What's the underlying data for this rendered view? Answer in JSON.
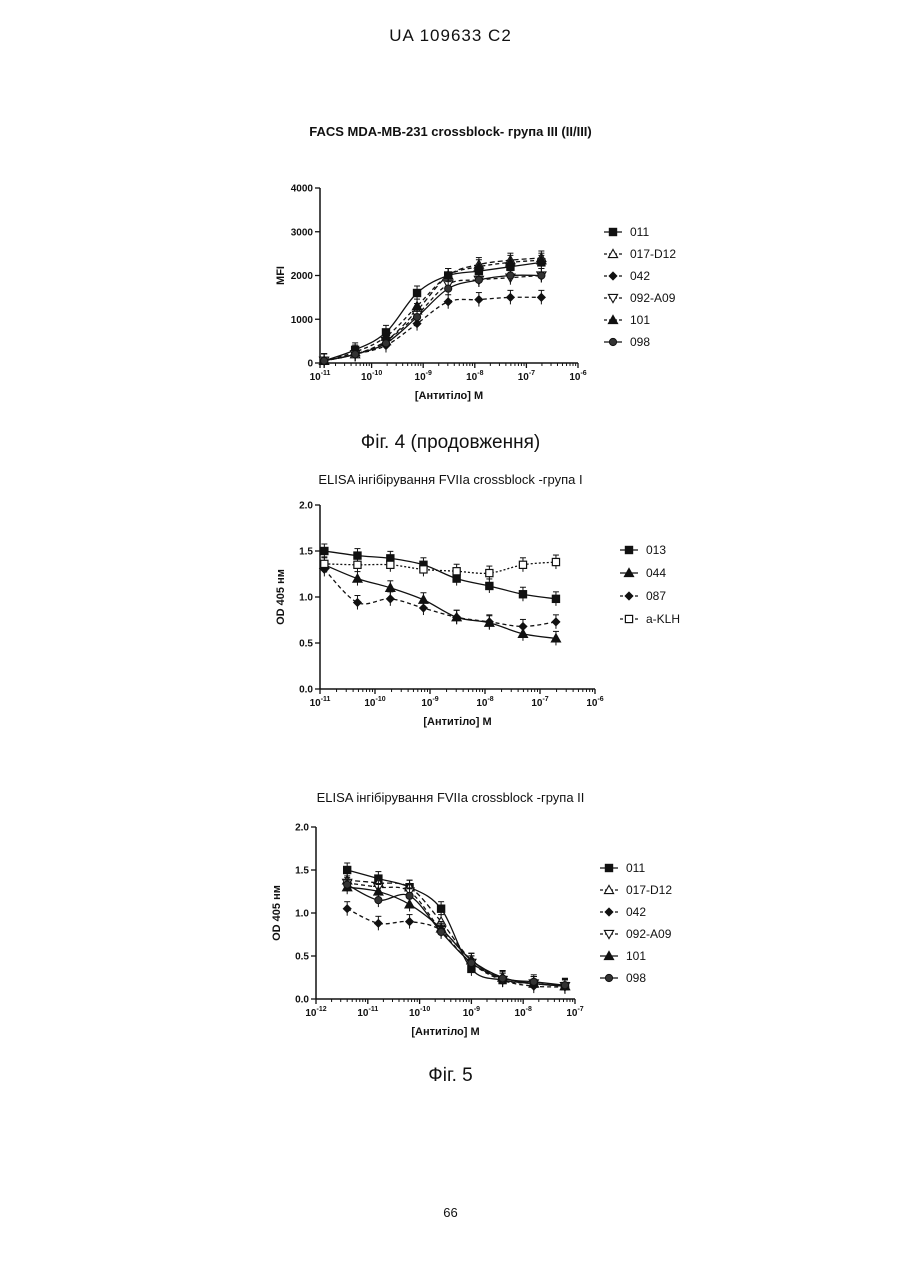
{
  "header": "UA   109633   C2",
  "page_number": "66",
  "captions": [
    "Фіг. 4 (продовження)",
    "Фіг. 5"
  ],
  "chart_data": [
    {
      "type": "line",
      "title": "FACS MDA-MB-231 crossblock- група  III (II/III)",
      "xlabel": "[Антитіло] M",
      "ylabel": "MFI",
      "x_scale": "log",
      "xlim": [
        1e-11,
        1e-06
      ],
      "ylim": [
        0,
        4000
      ],
      "x_ticks": [
        {
          "value": 1e-11,
          "label": "10-11"
        },
        {
          "value": 1e-10,
          "label": "10-10"
        },
        {
          "value": 1e-09,
          "label": "10-9"
        },
        {
          "value": 1e-08,
          "label": "10-8"
        },
        {
          "value": 1e-07,
          "label": "10-7"
        },
        {
          "value": 1e-06,
          "label": "10-6"
        }
      ],
      "y_ticks": [
        0,
        1000,
        2000,
        3000,
        4000
      ],
      "x": [
        1.2e-11,
        4.8e-11,
        1.9e-10,
        7.6e-10,
        3.05e-09,
        1.2e-08,
        4.9e-08,
        1.95e-07
      ],
      "legend_position": "right",
      "series": [
        {
          "name": "011",
          "marker": "square",
          "dash": "",
          "values": [
            50,
            300,
            700,
            1600,
            2000,
            2100,
            2200,
            2300
          ]
        },
        {
          "name": "017-D12",
          "marker": "triangle-open",
          "dash": "5,3",
          "values": [
            50,
            200,
            500,
            1200,
            2000,
            2250,
            2350,
            2400
          ]
        },
        {
          "name": "042",
          "marker": "diamond",
          "dash": "4,3",
          "values": [
            50,
            200,
            400,
            900,
            1400,
            1450,
            1500,
            1500
          ]
        },
        {
          "name": "092-A09",
          "marker": "triangle-down-open",
          "dash": "4,3",
          "values": [
            50,
            200,
            500,
            1100,
            1800,
            1900,
            1950,
            2000
          ]
        },
        {
          "name": "101",
          "marker": "triangle",
          "dash": "4,3",
          "values": [
            50,
            250,
            600,
            1300,
            2000,
            2200,
            2300,
            2350
          ]
        },
        {
          "name": "098",
          "marker": "circle",
          "dash": "",
          "values": [
            50,
            200,
            450,
            1050,
            1700,
            1900,
            2000,
            2000
          ]
        }
      ]
    },
    {
      "type": "line",
      "title": "ELISA інгібірування  FVIIa crossblock -група I",
      "xlabel": "[Антитіло] M",
      "ylabel": "OD 405 нм",
      "x_scale": "log",
      "xlim": [
        1e-11,
        1e-06
      ],
      "ylim": [
        0,
        2.0
      ],
      "x_ticks": [
        {
          "value": 1e-11,
          "label": "10-11"
        },
        {
          "value": 1e-10,
          "label": "10-10"
        },
        {
          "value": 1e-09,
          "label": "10-9"
        },
        {
          "value": 1e-08,
          "label": "10-8"
        },
        {
          "value": 1e-07,
          "label": "10-7"
        },
        {
          "value": 1e-06,
          "label": "10-6"
        }
      ],
      "y_ticks": [
        {
          "value": 0,
          "label": "0.0"
        },
        {
          "value": 0.5,
          "label": "0.5"
        },
        {
          "value": 1.0,
          "label": "1.0"
        },
        {
          "value": 1.5,
          "label": "1.5"
        },
        {
          "value": 2.0,
          "label": "2.0"
        }
      ],
      "x": [
        1.2e-11,
        4.8e-11,
        1.9e-10,
        7.6e-10,
        3.05e-09,
        1.2e-08,
        4.9e-08,
        1.95e-07
      ],
      "legend_position": "right",
      "series": [
        {
          "name": "013",
          "marker": "square",
          "dash": "",
          "values": [
            1.5,
            1.45,
            1.42,
            1.35,
            1.2,
            1.12,
            1.03,
            0.98
          ]
        },
        {
          "name": "044",
          "marker": "triangle",
          "dash": "",
          "values": [
            1.35,
            1.2,
            1.1,
            0.97,
            0.78,
            0.72,
            0.6,
            0.55
          ]
        },
        {
          "name": "087",
          "marker": "diamond",
          "dash": "4,3",
          "values": [
            1.3,
            0.94,
            0.98,
            0.88,
            0.78,
            0.73,
            0.68,
            0.73
          ]
        },
        {
          "name": "a-KLH",
          "marker": "square-open",
          "dash": "2,2",
          "values": [
            1.36,
            1.35,
            1.35,
            1.3,
            1.28,
            1.26,
            1.35,
            1.38
          ]
        }
      ]
    },
    {
      "type": "line",
      "title": "ELISA інгібірування  FVIIa crossblock -група II",
      "xlabel": "[Антитіло] M",
      "ylabel": "OD 405 нм",
      "x_scale": "log",
      "xlim": [
        1e-12,
        1e-07
      ],
      "ylim": [
        0,
        2.0
      ],
      "x_ticks": [
        {
          "value": 1e-12,
          "label": "10-12"
        },
        {
          "value": 1e-11,
          "label": "10-11"
        },
        {
          "value": 1e-10,
          "label": "10-10"
        },
        {
          "value": 1e-09,
          "label": "10-9"
        },
        {
          "value": 1e-08,
          "label": "10-8"
        },
        {
          "value": 1e-07,
          "label": "10-7"
        }
      ],
      "y_ticks": [
        {
          "value": 0,
          "label": "0.0"
        },
        {
          "value": 0.5,
          "label": "0.5"
        },
        {
          "value": 1.0,
          "label": "1.0"
        },
        {
          "value": 1.5,
          "label": "1.5"
        },
        {
          "value": 2.0,
          "label": "2.0"
        }
      ],
      "x": [
        4e-12,
        1.6e-11,
        6.4e-11,
        2.6e-10,
        1e-09,
        4e-09,
        1.6e-08,
        6.4e-08
      ],
      "legend_position": "right",
      "series": [
        {
          "name": "011",
          "marker": "square",
          "dash": "",
          "values": [
            1.5,
            1.4,
            1.3,
            1.05,
            0.35,
            0.22,
            0.18,
            0.15
          ]
        },
        {
          "name": "017-D12",
          "marker": "triangle-open",
          "dash": "5,3",
          "values": [
            1.38,
            1.35,
            1.3,
            0.9,
            0.45,
            0.25,
            0.18,
            0.15
          ]
        },
        {
          "name": "042",
          "marker": "diamond",
          "dash": "4,3",
          "values": [
            1.05,
            0.88,
            0.9,
            0.8,
            0.45,
            0.22,
            0.15,
            0.14
          ]
        },
        {
          "name": "092-A09",
          "marker": "triangle-down-open",
          "dash": "4,3",
          "values": [
            1.35,
            1.3,
            1.25,
            0.8,
            0.42,
            0.22,
            0.18,
            0.15
          ]
        },
        {
          "name": "101",
          "marker": "triangle",
          "dash": "",
          "values": [
            1.3,
            1.25,
            1.1,
            0.82,
            0.45,
            0.25,
            0.18,
            0.15
          ]
        },
        {
          "name": "098",
          "marker": "circle",
          "dash": "",
          "values": [
            1.33,
            1.15,
            1.2,
            0.78,
            0.42,
            0.24,
            0.2,
            0.16
          ]
        }
      ]
    }
  ]
}
